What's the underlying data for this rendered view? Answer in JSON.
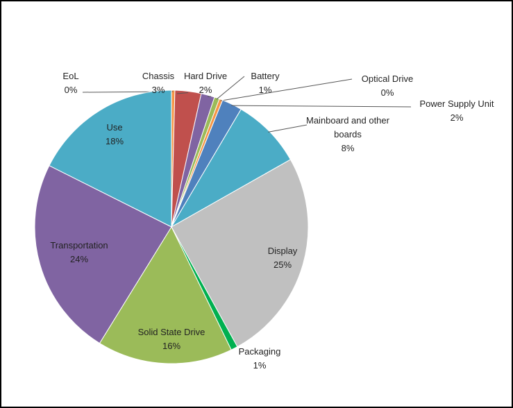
{
  "chart_data": {
    "type": "pie",
    "categories": [
      "EoL",
      "Chassis",
      "Hard Drive",
      "Battery",
      "Optical Drive",
      "Power Supply Unit",
      "Mainboard and other boards",
      "Display",
      "Packaging",
      "Solid State Drive",
      "Transportation",
      "Use"
    ],
    "values": [
      0.4,
      3.1,
      1.6,
      0.6,
      0.4,
      2.4,
      8.3,
      25.2,
      0.8,
      16.0,
      23.6,
      17.6
    ],
    "value_labels": [
      "0%",
      "3%",
      "2%",
      "1%",
      "0%",
      "2%",
      "8%",
      "25%",
      "1%",
      "16%",
      "24%",
      "18%"
    ],
    "colors": [
      "#f79646",
      "#c0504d",
      "#8064a2",
      "#9bbb59",
      "#f79646",
      "#4f81bd",
      "#4bacc6",
      "#c0c0c0",
      "#00b050",
      "#9bbb59",
      "#8064a2",
      "#4bacc6"
    ]
  }
}
